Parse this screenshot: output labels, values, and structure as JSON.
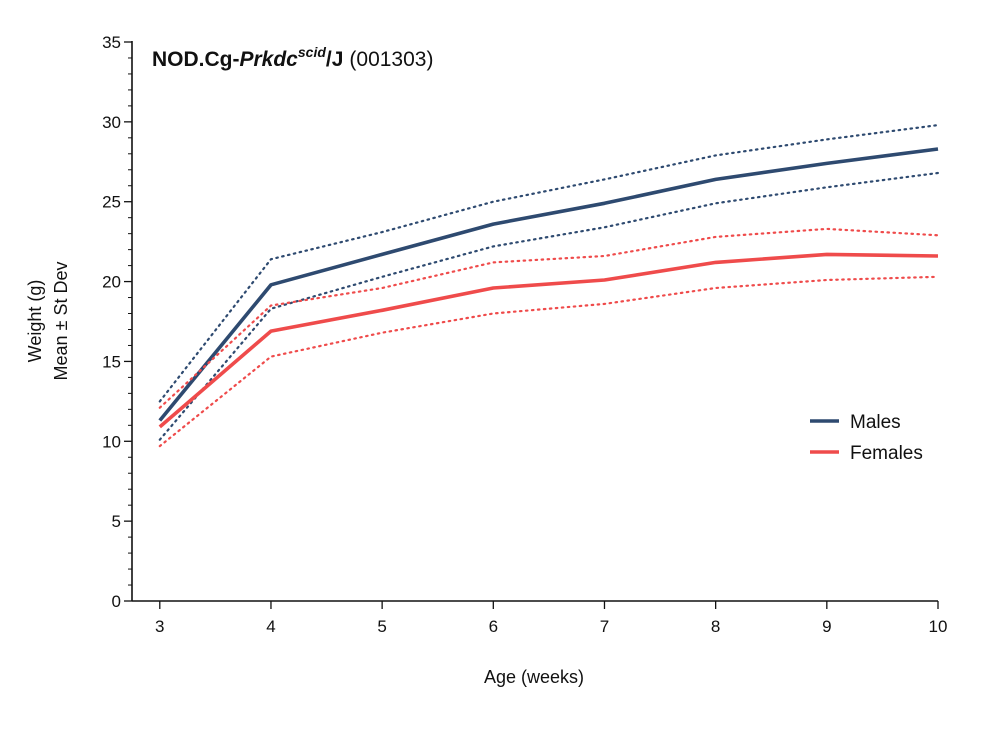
{
  "chart_data": {
    "type": "line",
    "title": {
      "main_prefix": "NOD.Cg-",
      "gene": "Prkdc",
      "allele": "scid",
      "suffix": "/J",
      "stock": "(001303)"
    },
    "xlabel": "Age (weeks)",
    "ylabel": [
      "Weight (g)",
      "Mean ± St Dev"
    ],
    "xlim": [
      2.75,
      10
    ],
    "ylim": [
      0,
      35
    ],
    "xticks": [
      3,
      4,
      5,
      6,
      7,
      8,
      9,
      10
    ],
    "yticks": [
      0,
      5,
      10,
      15,
      20,
      25,
      30,
      35
    ],
    "grid": false,
    "legend_position": "right",
    "x": [
      3,
      4,
      5,
      6,
      7,
      8,
      9,
      10
    ],
    "series": [
      {
        "name": "Males",
        "color": "#2e4a70",
        "mean": [
          11.3,
          19.8,
          21.7,
          23.6,
          24.9,
          26.4,
          27.4,
          28.3
        ],
        "upper": [
          12.5,
          21.4,
          23.1,
          25.0,
          26.4,
          27.9,
          28.9,
          29.8
        ],
        "lower": [
          10.1,
          18.3,
          20.3,
          22.2,
          23.4,
          24.9,
          25.9,
          26.8
        ]
      },
      {
        "name": "Females",
        "color": "#ef4b4b",
        "mean": [
          10.9,
          16.9,
          18.2,
          19.6,
          20.1,
          21.2,
          21.7,
          21.6
        ],
        "upper": [
          12.1,
          18.5,
          19.6,
          21.2,
          21.6,
          22.8,
          23.3,
          22.9
        ],
        "lower": [
          9.7,
          15.3,
          16.8,
          18.0,
          18.6,
          19.6,
          20.1,
          20.3
        ]
      }
    ]
  }
}
